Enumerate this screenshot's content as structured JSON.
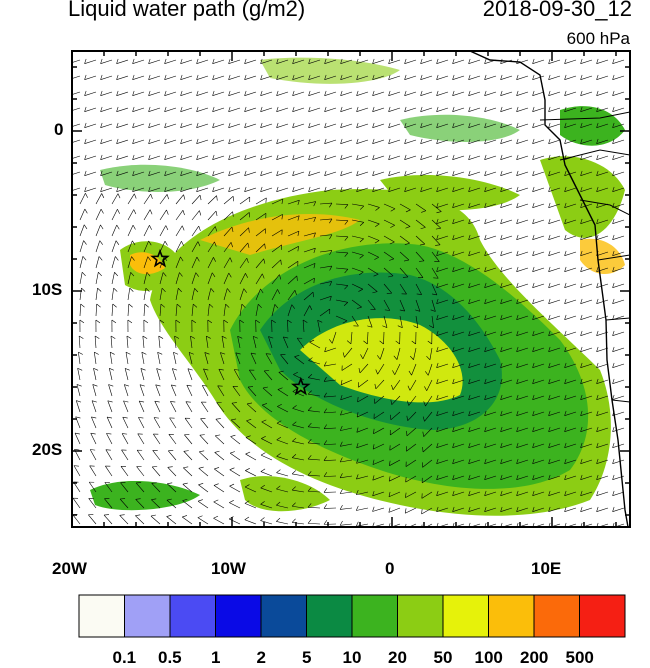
{
  "title": "Liquid water path (g/m2)",
  "datetime": "2018-09-30_12",
  "level": "600 hPa",
  "axes": {
    "x_ticks": [
      "20W",
      "10W",
      "0",
      "10E"
    ],
    "y_ticks": [
      "0",
      "10S",
      "20S"
    ],
    "lon_range": [
      -20,
      15
    ],
    "lat_range": [
      -25,
      5
    ]
  },
  "markers": [
    {
      "name": "star-1",
      "lon": -14.5,
      "lat": -8
    },
    {
      "name": "star-2",
      "lon": -5.7,
      "lat": -16
    }
  ],
  "colorbar": {
    "labels": [
      "0.1",
      "0.5",
      "1",
      "2",
      "5",
      "10",
      "20",
      "50",
      "100",
      "200",
      "500"
    ],
    "colors": [
      "#fbfbf3",
      "#a0a0f6",
      "#4b4bf3",
      "#0a0ae6",
      "#0a4a9a",
      "#0b8a43",
      "#3cb31f",
      "#8ccd14",
      "#e6f20a",
      "#fbbe0a",
      "#fb6a0a",
      "#f51f14"
    ]
  }
}
